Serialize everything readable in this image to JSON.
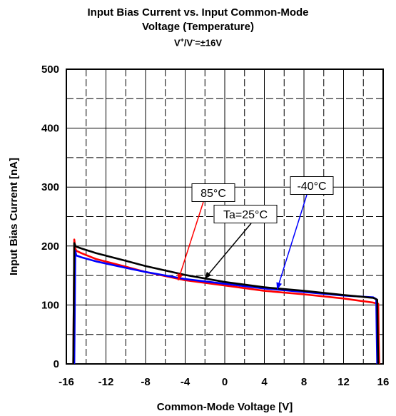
{
  "chart_data": {
    "type": "line",
    "title": "Input Bias Current vs. Input Common-Mode",
    "title_line2": "Voltage (Temperature)",
    "subtitle": {
      "main": "V",
      "sup1": "+",
      "mid": "/V",
      "sup2": "-",
      "tail": "=±16V"
    },
    "xlabel": "Common-Mode Voltage [V]",
    "ylabel": "Input Bias Current [nA]",
    "xlim": [
      -16,
      16
    ],
    "ylim": [
      0,
      500
    ],
    "xticks": [
      -16,
      -12,
      -8,
      -4,
      0,
      4,
      8,
      12,
      16
    ],
    "yticks": [
      0,
      100,
      200,
      300,
      400,
      500
    ],
    "grid": true,
    "legend": "none",
    "series": [
      {
        "name": "Ta=25°C",
        "color": "#000000",
        "x": [
          -15.3,
          -15.2,
          -15.1,
          -15.0,
          -14.5,
          -13,
          -10,
          -8,
          -4,
          0,
          4,
          8,
          12,
          15.0,
          15.4,
          15.45,
          15.5
        ],
        "y": [
          0,
          205,
          201,
          199,
          196,
          188,
          175,
          166,
          151,
          139,
          130,
          124,
          117,
          112,
          109,
          50,
          0
        ]
      },
      {
        "name": "85°C",
        "color": "#ff0000",
        "x": [
          -15.3,
          -15.2,
          -15.1,
          -15.0,
          -14.5,
          -13,
          -10,
          -8,
          -4,
          0,
          4,
          8,
          12,
          15.0,
          15.5,
          15.55,
          15.6
        ],
        "y": [
          0,
          211,
          196,
          192,
          188,
          178,
          165,
          156,
          142,
          133,
          124,
          118,
          111,
          104,
          102,
          40,
          0
        ]
      },
      {
        "name": "-40°C",
        "color": "#0000ff",
        "x": [
          -15.2,
          -15.1,
          -15.0,
          -14.5,
          -13,
          -10,
          -8,
          -4,
          0,
          4,
          8,
          12,
          15.0,
          15.3,
          15.35,
          15.4
        ],
        "y": [
          0,
          192,
          184,
          181,
          174,
          163,
          156,
          144,
          136,
          128,
          122,
          116,
          113,
          110,
          50,
          0
        ]
      }
    ],
    "annotations": [
      {
        "label": "85°C",
        "color": "#ff0000",
        "point": [
          -4.7,
          142
        ]
      },
      {
        "label": "Ta=25°C",
        "color": "#000000",
        "point": [
          -2.0,
          145
        ]
      },
      {
        "label": "-40°C",
        "color": "#0000ff",
        "point": [
          5.3,
          127
        ]
      }
    ]
  }
}
